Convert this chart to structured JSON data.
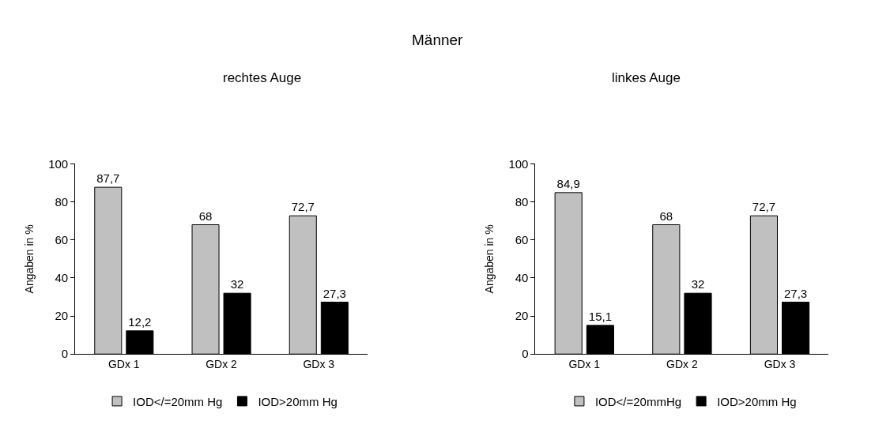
{
  "chart_data": [
    {
      "type": "bar",
      "title": "rechtes Auge",
      "annotations": [
        "Männer"
      ],
      "ylabel": "Angaben in %",
      "categories": [
        "GDx 1",
        "GDx 2",
        "GDx 3"
      ],
      "ylim": [
        0,
        100
      ],
      "yticks": [
        0,
        20,
        40,
        60,
        80,
        100
      ],
      "grid": false,
      "legend": "bottom",
      "series": [
        {
          "name": "IOD</=20mm Hg",
          "color": "#c0c0c0",
          "values": [
            87.7,
            68,
            72.7
          ],
          "value_labels": [
            "87,7",
            "68",
            "72,7"
          ]
        },
        {
          "name": "IOD>20mm Hg",
          "color": "#000000",
          "values": [
            12.2,
            32,
            27.3
          ],
          "value_labels": [
            "12,2",
            "32",
            "27,3"
          ]
        }
      ]
    },
    {
      "type": "bar",
      "title": "linkes Auge",
      "ylabel": "Angaben in %",
      "categories": [
        "GDx 1",
        "GDx 2",
        "GDx 3"
      ],
      "ylim": [
        0,
        100
      ],
      "yticks": [
        0,
        20,
        40,
        60,
        80,
        100
      ],
      "grid": false,
      "legend": "bottom",
      "series": [
        {
          "name": "IOD</=20mmHg",
          "color": "#c0c0c0",
          "values": [
            84.9,
            68,
            72.7
          ],
          "value_labels": [
            "84,9",
            "68",
            "72,7"
          ]
        },
        {
          "name": "IOD>20mm Hg",
          "color": "#000000",
          "values": [
            15.1,
            32,
            27.3
          ],
          "value_labels": [
            "15,1",
            "32",
            "27,3"
          ]
        }
      ]
    }
  ]
}
